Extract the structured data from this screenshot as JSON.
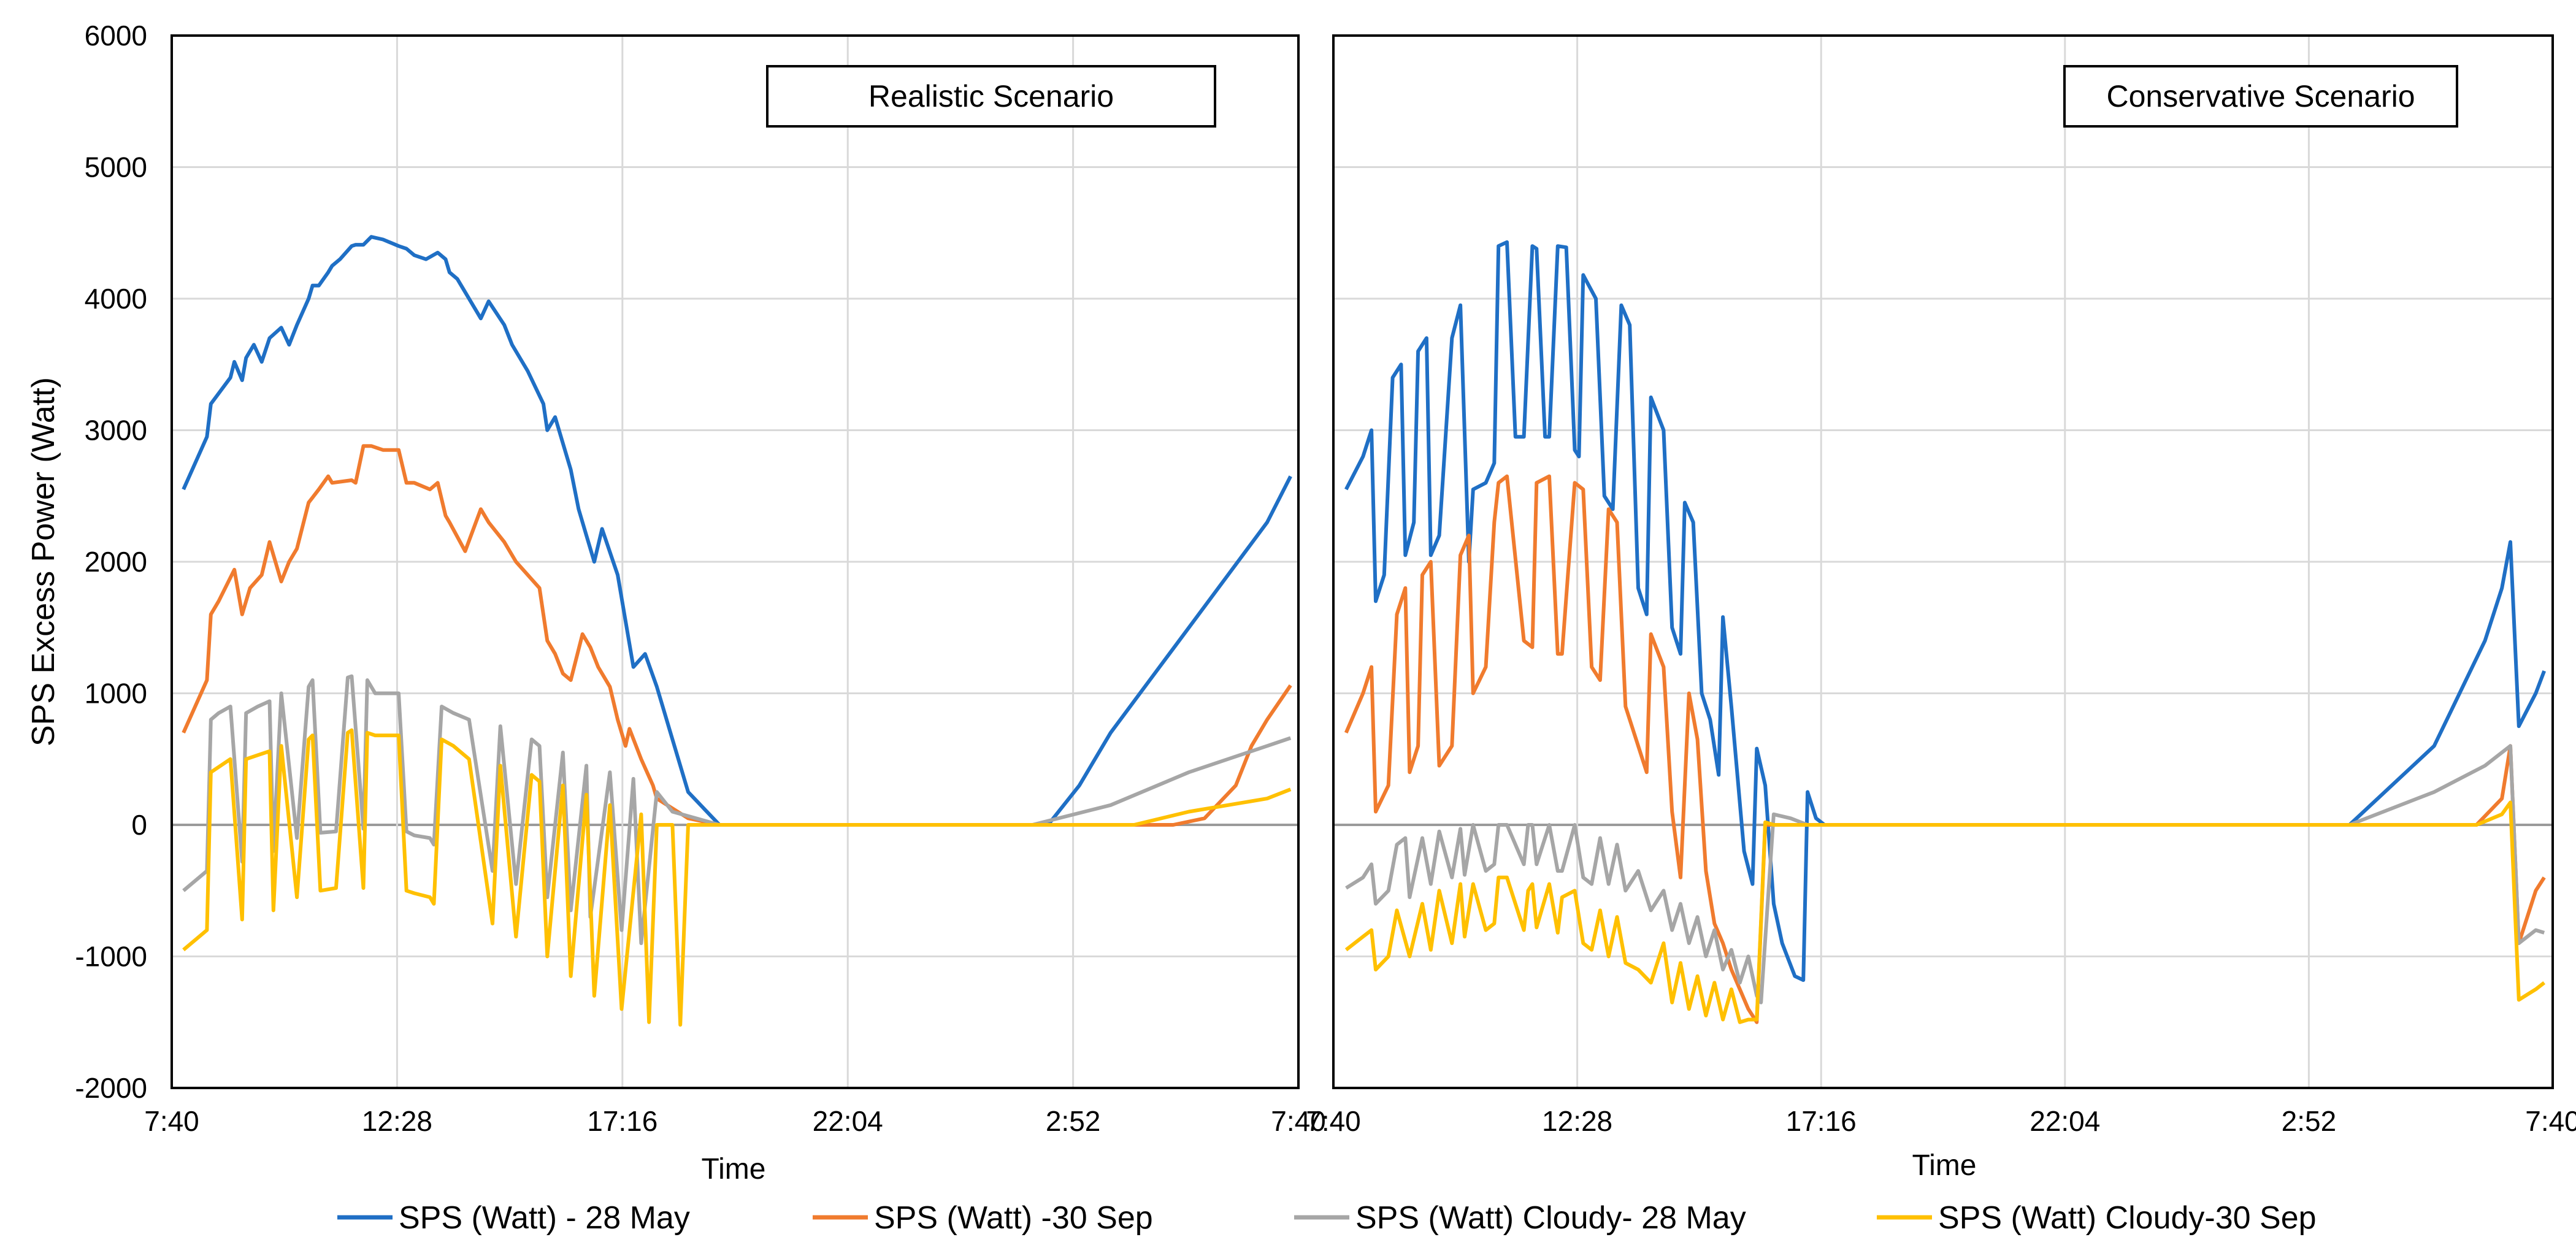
{
  "chart_data": [
    {
      "type": "line",
      "panel": "left",
      "title": "Realistic Scenario",
      "xlabel": "Time",
      "ylabel": "SPS Excess Power (Watt)",
      "ylim": [
        -2000,
        6000
      ],
      "yticks": [
        -2000,
        -1000,
        0,
        1000,
        2000,
        3000,
        4000,
        5000,
        6000
      ],
      "xlim": [
        0,
        1440
      ],
      "xtick_values": [
        0,
        288,
        576,
        864,
        1152,
        1440
      ],
      "xtick_labels": [
        "7:40",
        "12:28",
        "17:16",
        "22:04",
        "2:52",
        "7:40"
      ],
      "x_units": "minutes after 7:40",
      "grid": true,
      "series": [
        {
          "name": "SPS (Watt) - 28 May",
          "color": "#1f6fc5",
          "x": [
            15,
            45,
            50,
            75,
            80,
            90,
            95,
            105,
            115,
            125,
            140,
            150,
            160,
            175,
            180,
            188,
            200,
            205,
            215,
            230,
            235,
            245,
            255,
            270,
            290,
            300,
            310,
            325,
            340,
            350,
            355,
            365,
            375,
            395,
            405,
            425,
            435,
            455,
            475,
            480,
            490,
            500,
            510,
            520,
            530,
            540,
            550,
            570,
            580,
            590,
            605,
            620,
            640,
            660,
            700,
            900,
            1100,
            1120,
            1160,
            1200,
            1250,
            1300,
            1350,
            1400,
            1430
          ],
          "y": [
            2550,
            2950,
            3200,
            3400,
            3520,
            3380,
            3550,
            3650,
            3520,
            3700,
            3780,
            3650,
            3800,
            4000,
            4100,
            4100,
            4200,
            4250,
            4300,
            4400,
            4410,
            4410,
            4470,
            4450,
            4400,
            4380,
            4330,
            4300,
            4350,
            4300,
            4200,
            4150,
            4050,
            3850,
            3980,
            3800,
            3650,
            3450,
            3200,
            3000,
            3100,
            2900,
            2700,
            2400,
            2200,
            2000,
            2250,
            1900,
            1550,
            1200,
            1300,
            1050,
            650,
            250,
            0,
            0,
            0,
            0,
            300,
            700,
            1100,
            1500,
            1900,
            2300,
            2650
          ]
        },
        {
          "name": "SPS (Watt) -30 Sep",
          "color": "#f07b2e",
          "x": [
            15,
            45,
            50,
            60,
            80,
            90,
            95,
            100,
            115,
            125,
            140,
            150,
            160,
            175,
            188,
            200,
            205,
            230,
            235,
            245,
            255,
            270,
            290,
            300,
            310,
            330,
            340,
            350,
            355,
            375,
            395,
            405,
            425,
            440,
            470,
            480,
            490,
            500,
            510,
            525,
            535,
            545,
            560,
            570,
            580,
            585,
            600,
            615,
            620,
            660,
            700,
            1000,
            1200,
            1240,
            1280,
            1320,
            1360,
            1380,
            1400,
            1430
          ],
          "y": [
            700,
            1100,
            1600,
            1700,
            1940,
            1600,
            1700,
            1800,
            1900,
            2150,
            1850,
            2000,
            2100,
            2450,
            2550,
            2650,
            2600,
            2620,
            2600,
            2880,
            2880,
            2850,
            2850,
            2600,
            2600,
            2550,
            2600,
            2350,
            2300,
            2080,
            2400,
            2300,
            2150,
            2000,
            1800,
            1400,
            1300,
            1150,
            1100,
            1450,
            1350,
            1200,
            1050,
            800,
            600,
            730,
            500,
            300,
            200,
            50,
            0,
            0,
            0,
            0,
            0,
            50,
            300,
            600,
            800,
            1060
          ]
        },
        {
          "name": "SPS (Watt) Cloudy- 28 May",
          "color": "#a6a6a6",
          "x": [
            15,
            45,
            50,
            60,
            75,
            90,
            95,
            110,
            125,
            130,
            140,
            160,
            175,
            180,
            190,
            210,
            225,
            230,
            245,
            250,
            260,
            290,
            300,
            310,
            330,
            335,
            345,
            360,
            380,
            410,
            420,
            440,
            460,
            470,
            480,
            500,
            510,
            530,
            535,
            560,
            575,
            590,
            600,
            620,
            640,
            700,
            1000,
            1100,
            1200,
            1300,
            1400,
            1430
          ],
          "y": [
            -500,
            -350,
            800,
            850,
            900,
            -280,
            850,
            900,
            940,
            -200,
            1000,
            -100,
            1050,
            1100,
            -60,
            -50,
            1120,
            1130,
            -30,
            1100,
            1000,
            1000,
            -50,
            -80,
            -100,
            -150,
            900,
            850,
            800,
            -350,
            750,
            -450,
            650,
            600,
            -550,
            550,
            -650,
            450,
            -700,
            400,
            -800,
            350,
            -900,
            250,
            100,
            0,
            0,
            0,
            150,
            400,
            600,
            660
          ]
        },
        {
          "name": "SPS (Watt) Cloudy-30 Sep",
          "color": "#ffc000",
          "x": [
            15,
            45,
            50,
            75,
            90,
            95,
            110,
            125,
            130,
            140,
            160,
            175,
            180,
            190,
            210,
            225,
            230,
            245,
            250,
            260,
            290,
            300,
            310,
            330,
            335,
            345,
            360,
            380,
            410,
            420,
            440,
            460,
            470,
            480,
            500,
            510,
            530,
            540,
            560,
            575,
            600,
            610,
            620,
            640,
            650,
            660,
            700,
            1000,
            1200,
            1230,
            1300,
            1400,
            1430
          ],
          "y": [
            -950,
            -800,
            400,
            500,
            -720,
            500,
            530,
            560,
            -650,
            600,
            -550,
            650,
            680,
            -500,
            -480,
            700,
            720,
            -480,
            700,
            680,
            680,
            -500,
            -520,
            -550,
            -600,
            650,
            600,
            500,
            -750,
            450,
            -850,
            380,
            330,
            -1000,
            300,
            -1150,
            230,
            -1300,
            150,
            -1400,
            80,
            -1500,
            0,
            0,
            -1520,
            0,
            0,
            0,
            0,
            0,
            100,
            200,
            270
          ]
        }
      ]
    },
    {
      "type": "line",
      "panel": "right",
      "title": "Conservative Scenario",
      "xlabel": "Time",
      "ylabel": "",
      "ylim": [
        -2000,
        6000
      ],
      "xlim": [
        0,
        1440
      ],
      "xtick_values": [
        0,
        288,
        576,
        864,
        1152,
        1440
      ],
      "xtick_labels": [
        "7:40",
        "12:28",
        "17:16",
        "22:04",
        "2:52",
        "7:40"
      ],
      "x_units": "minutes after 7:40",
      "grid": true,
      "series": [
        {
          "name": "SPS (Watt) - 28 May",
          "color": "#1f6fc5",
          "x": [
            15,
            35,
            45,
            50,
            60,
            70,
            80,
            85,
            95,
            100,
            110,
            115,
            125,
            140,
            150,
            160,
            165,
            180,
            190,
            195,
            205,
            215,
            225,
            235,
            240,
            250,
            255,
            265,
            275,
            285,
            290,
            295,
            310,
            320,
            330,
            340,
            350,
            360,
            370,
            375,
            390,
            400,
            410,
            415,
            425,
            435,
            445,
            455,
            460,
            470,
            485,
            495,
            500,
            510,
            520,
            530,
            545,
            555,
            560,
            570,
            580,
            590,
            600,
            620,
            630,
            650,
            670,
            700,
            800,
            900,
            1000,
            1100,
            1200,
            1300,
            1360,
            1380,
            1390,
            1400,
            1420,
            1430
          ],
          "y": [
            2550,
            2800,
            3000,
            1700,
            1900,
            3400,
            3500,
            2050,
            2300,
            3600,
            3700,
            2050,
            2200,
            3700,
            3950,
            2000,
            2550,
            2600,
            2750,
            4400,
            4430,
            2950,
            2950,
            4400,
            4380,
            2950,
            2950,
            4400,
            4390,
            2850,
            2800,
            4180,
            4000,
            2500,
            2400,
            3950,
            3800,
            1800,
            1600,
            3250,
            3000,
            1500,
            1300,
            2450,
            2300,
            1000,
            800,
            380,
            1580,
            900,
            -200,
            -450,
            580,
            300,
            -600,
            -900,
            -1150,
            -1180,
            250,
            50,
            0,
            0,
            0,
            0,
            0,
            0,
            0,
            0,
            0,
            0,
            0,
            0,
            0,
            600,
            1400,
            1800,
            2150,
            750,
            1000,
            1170
          ]
        },
        {
          "name": "SPS (Watt) -30 Sep",
          "color": "#f07b2e",
          "x": [
            15,
            35,
            45,
            50,
            65,
            75,
            85,
            90,
            100,
            105,
            115,
            125,
            140,
            150,
            160,
            165,
            180,
            190,
            195,
            205,
            225,
            235,
            240,
            255,
            265,
            270,
            285,
            295,
            305,
            315,
            325,
            335,
            345,
            360,
            370,
            375,
            390,
            400,
            410,
            420,
            430,
            440,
            450,
            460,
            470,
            480,
            490,
            500,
            510,
            540,
            560,
            600,
            700,
            1000,
            1300,
            1350,
            1380,
            1390,
            1400,
            1420,
            1430
          ],
          "y": [
            700,
            1000,
            1200,
            100,
            300,
            1600,
            1800,
            400,
            600,
            1900,
            2000,
            450,
            600,
            2050,
            2200,
            1000,
            1200,
            2300,
            2600,
            2650,
            1400,
            1350,
            2600,
            2650,
            1300,
            1300,
            2600,
            2550,
            1200,
            1100,
            2400,
            2300,
            900,
            600,
            400,
            1450,
            1200,
            100,
            -400,
            1000,
            650,
            -350,
            -750,
            -900,
            -1100,
            -1250,
            -1400,
            -1500,
            0,
            0,
            0,
            0,
            0,
            0,
            0,
            0,
            200,
            600,
            -900,
            -500,
            -400
          ]
        },
        {
          "name": "SPS (Watt) Cloudy- 28 May",
          "color": "#a6a6a6",
          "x": [
            15,
            35,
            45,
            50,
            65,
            75,
            85,
            90,
            105,
            115,
            125,
            140,
            150,
            155,
            165,
            180,
            190,
            195,
            205,
            225,
            230,
            235,
            240,
            255,
            265,
            270,
            285,
            295,
            305,
            315,
            325,
            335,
            345,
            360,
            375,
            390,
            400,
            410,
            420,
            430,
            440,
            450,
            460,
            470,
            480,
            490,
            500,
            505,
            520,
            540,
            560,
            600,
            700,
            1000,
            1200,
            1300,
            1360,
            1390,
            1400,
            1420,
            1430
          ],
          "y": [
            -480,
            -400,
            -300,
            -600,
            -500,
            -150,
            -100,
            -550,
            -100,
            -450,
            -50,
            -400,
            -30,
            -380,
            0,
            -350,
            -300,
            0,
            0,
            -300,
            0,
            0,
            -300,
            0,
            -350,
            -350,
            0,
            -400,
            -450,
            -100,
            -450,
            -150,
            -500,
            -350,
            -650,
            -500,
            -800,
            -600,
            -900,
            -700,
            -1000,
            -800,
            -1100,
            -950,
            -1200,
            -1000,
            -1300,
            -1350,
            80,
            50,
            0,
            0,
            0,
            0,
            0,
            250,
            450,
            600,
            -900,
            -800,
            -820
          ]
        },
        {
          "name": "SPS (Watt) Cloudy-30 Sep",
          "color": "#ffc000",
          "x": [
            15,
            35,
            45,
            50,
            65,
            75,
            90,
            105,
            115,
            125,
            140,
            150,
            155,
            165,
            180,
            190,
            195,
            205,
            225,
            230,
            235,
            240,
            255,
            265,
            270,
            285,
            295,
            305,
            315,
            325,
            335,
            345,
            360,
            375,
            390,
            400,
            410,
            420,
            430,
            440,
            450,
            460,
            470,
            480,
            490,
            500,
            510,
            520,
            540,
            560,
            600,
            700,
            1000,
            1300,
            1350,
            1380,
            1390,
            1400,
            1420,
            1430
          ],
          "y": [
            -950,
            -850,
            -800,
            -1100,
            -1000,
            -650,
            -1000,
            -600,
            -950,
            -500,
            -900,
            -450,
            -850,
            -450,
            -800,
            -750,
            -400,
            -400,
            -800,
            -500,
            -450,
            -780,
            -450,
            -820,
            -550,
            -500,
            -900,
            -950,
            -650,
            -1000,
            -700,
            -1050,
            -1100,
            -1200,
            -900,
            -1350,
            -1050,
            -1400,
            -1150,
            -1450,
            -1200,
            -1480,
            -1250,
            -1500,
            -1480,
            -1480,
            20,
            0,
            0,
            0,
            0,
            0,
            0,
            0,
            0,
            80,
            170,
            -1330,
            -1250,
            -1200
          ]
        }
      ]
    }
  ],
  "legend": {
    "items": [
      {
        "label": "SPS (Watt) - 28 May",
        "color": "#1f6fc5"
      },
      {
        "label": "SPS (Watt) -30 Sep",
        "color": "#f07b2e"
      },
      {
        "label": "SPS (Watt) Cloudy- 28 May",
        "color": "#a6a6a6"
      },
      {
        "label": "SPS (Watt) Cloudy-30 Sep",
        "color": "#ffc000"
      }
    ]
  }
}
